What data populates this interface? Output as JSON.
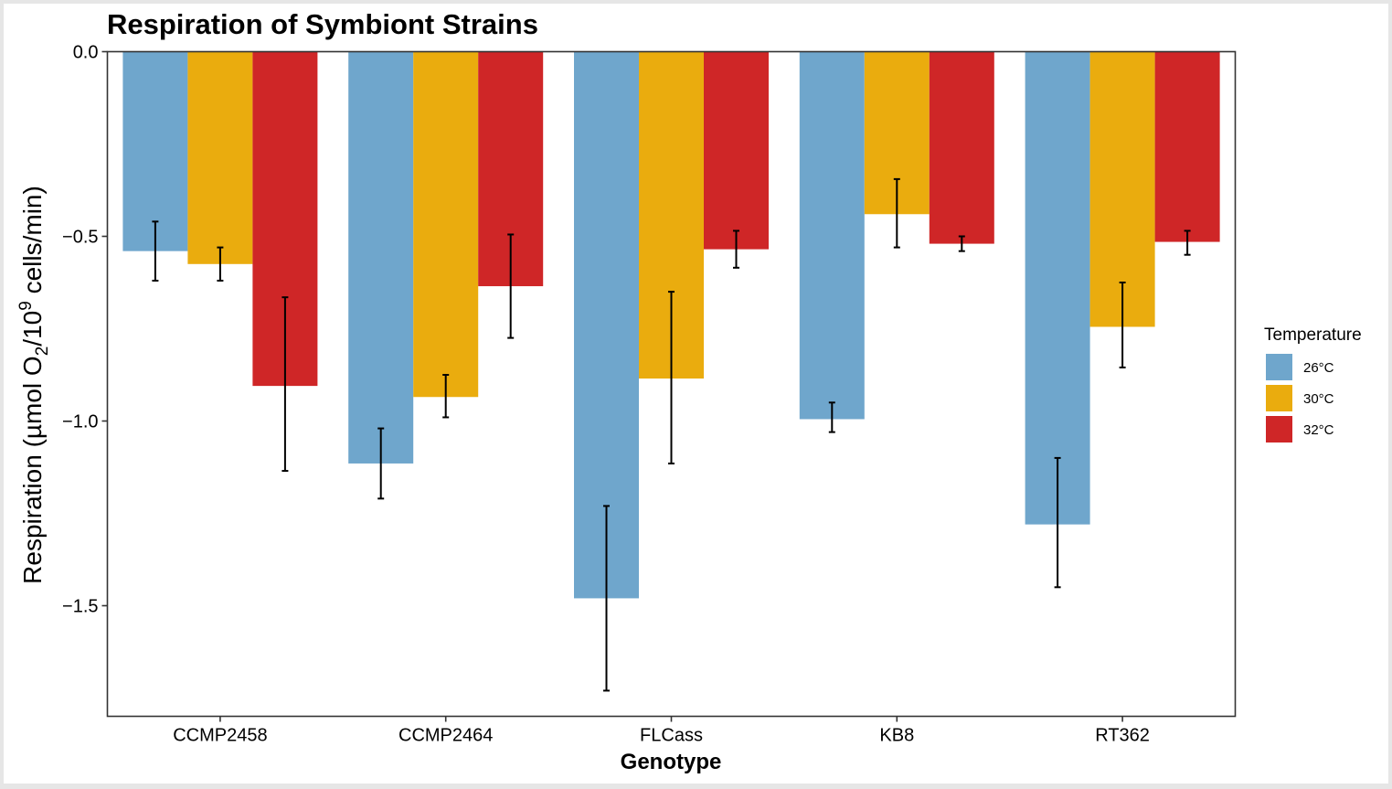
{
  "chart_data": {
    "type": "bar",
    "title": "Respiration of Symbiont Strains",
    "xlabel": "Genotype",
    "ylabel": {
      "prefix": "Respiration (µmol O",
      "sub": "2",
      "mid": "/10",
      "sup": "9",
      "suffix": " cells/min)"
    },
    "ylim": [
      -1.8,
      0.0
    ],
    "yticks": [
      0.0,
      -0.5,
      -1.0,
      -1.5
    ],
    "ytick_labels": [
      "0.0",
      "−0.5",
      "−1.0",
      "−1.5"
    ],
    "categories": [
      "CCMP2458",
      "CCMP2464",
      "FLCass",
      "KB8",
      "RT362"
    ],
    "legend_title": "Temperature",
    "legend_position": "right",
    "grid": false,
    "series": [
      {
        "name": "26°C",
        "color": "#6fa6cc",
        "values": [
          -0.54,
          -1.115,
          -1.48,
          -0.995,
          -1.28
        ],
        "err_low": [
          -0.62,
          -1.21,
          -1.73,
          -1.03,
          -1.45
        ],
        "err_high": [
          -0.46,
          -1.02,
          -1.23,
          -0.95,
          -1.1
        ]
      },
      {
        "name": "30°C",
        "color": "#eaac0e",
        "values": [
          -0.575,
          -0.935,
          -0.885,
          -0.44,
          -0.745
        ],
        "err_low": [
          -0.62,
          -0.99,
          -1.115,
          -0.53,
          -0.855
        ],
        "err_high": [
          -0.53,
          -0.875,
          -0.65,
          -0.345,
          -0.625
        ]
      },
      {
        "name": "32°C",
        "color": "#cf2627",
        "values": [
          -0.905,
          -0.635,
          -0.535,
          -0.52,
          -0.515
        ],
        "err_low": [
          -1.135,
          -0.775,
          -0.585,
          -0.54,
          -0.55
        ],
        "err_high": [
          -0.665,
          -0.495,
          -0.485,
          -0.5,
          -0.485
        ]
      }
    ]
  }
}
